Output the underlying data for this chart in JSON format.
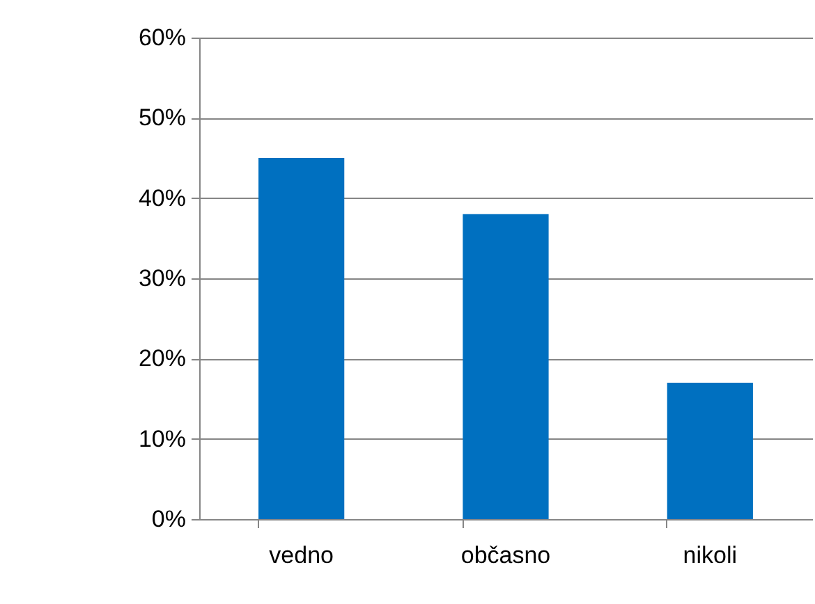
{
  "chart_data": {
    "type": "bar",
    "categories": [
      "vedno",
      "občasno",
      "nikoli"
    ],
    "values": [
      45,
      38,
      17
    ],
    "color": "#0070c0",
    "ylim": [
      0,
      60
    ],
    "yticks": [
      {
        "value": 0,
        "label": "0%"
      },
      {
        "value": 10,
        "label": "10%"
      },
      {
        "value": 20,
        "label": "20%"
      },
      {
        "value": 30,
        "label": "30%"
      },
      {
        "value": 40,
        "label": "40%"
      },
      {
        "value": 50,
        "label": "50%"
      },
      {
        "value": 60,
        "label": "60%"
      }
    ],
    "grid": "y"
  }
}
